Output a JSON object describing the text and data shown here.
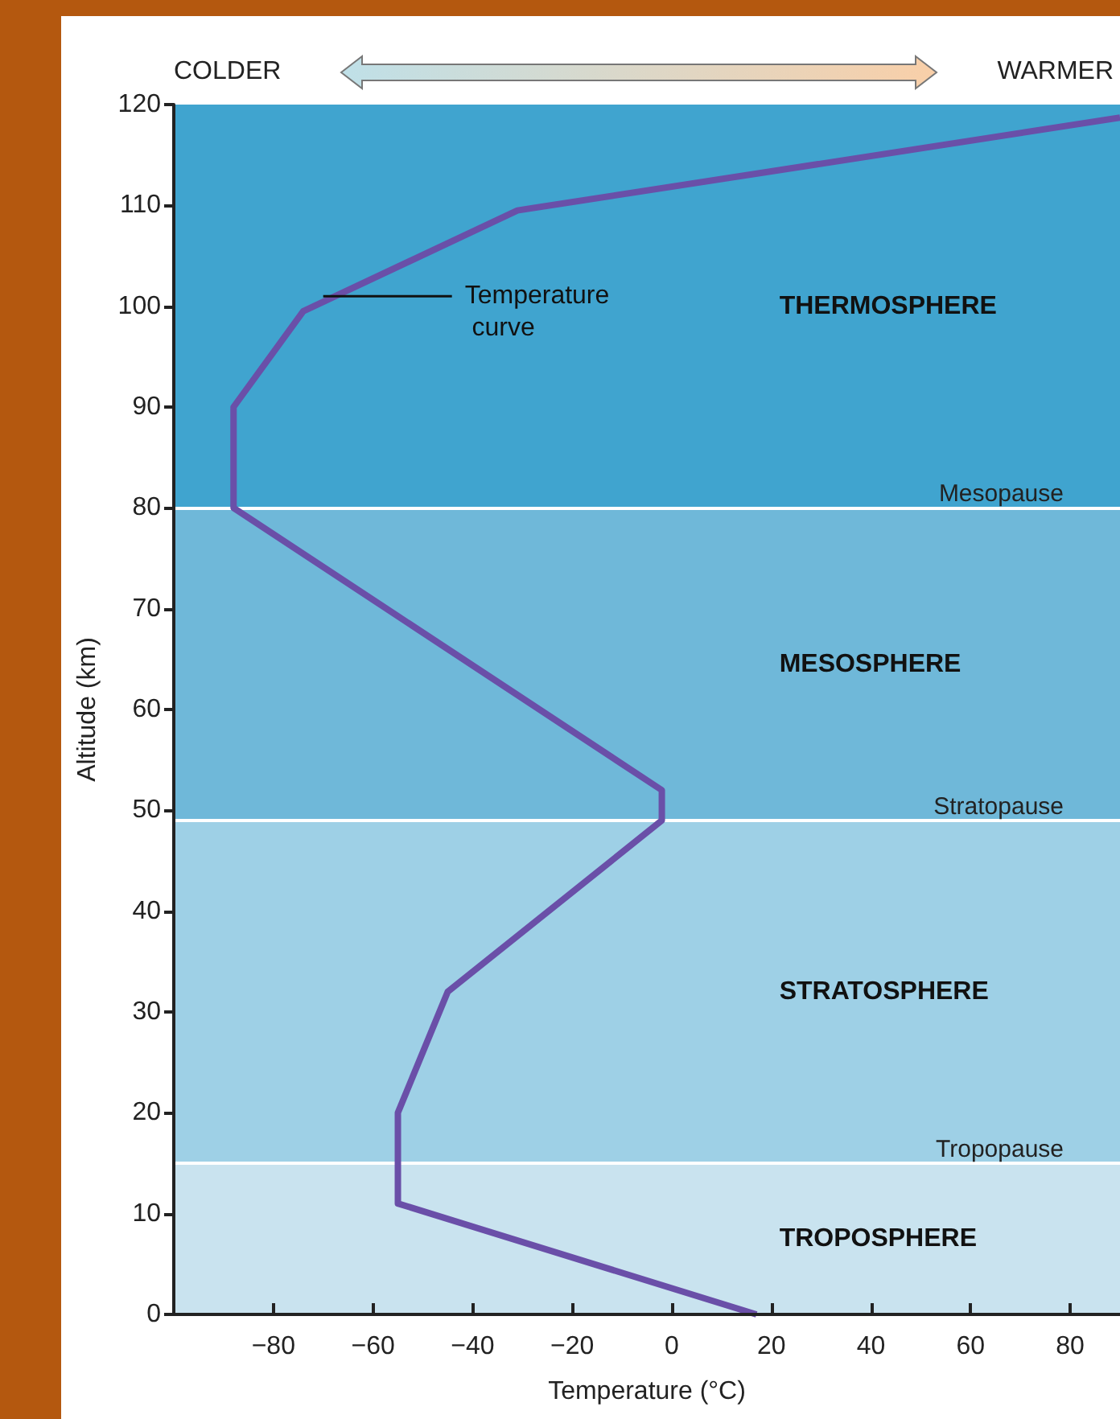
{
  "chart_data": {
    "type": "line",
    "xlabel": "Temperature (°C)",
    "ylabel": "Altitude (km)",
    "x": [
      17,
      -55,
      -55,
      -45,
      -2,
      -2,
      -88,
      -88,
      -74,
      -31,
      90
    ],
    "series": [
      {
        "color": "#6a4fa8",
        "values": [
          0,
          11,
          20,
          32,
          49,
          52,
          80,
          90,
          99.5,
          109.5,
          118.7
        ]
      }
    ],
    "xlim": [
      -100,
      90
    ],
    "xticks": [
      -80,
      -60,
      -40,
      -20,
      0,
      20,
      40,
      60,
      80
    ],
    "ylim": [
      0,
      120
    ],
    "yticks": [
      0,
      10,
      20,
      30,
      40,
      50,
      60,
      70,
      80,
      90,
      100,
      110,
      120
    ],
    "marker": "none",
    "line_style": "solid",
    "bands": [
      {
        "axis": "y",
        "from": 0,
        "to": 15,
        "label": "TROPOSPHERE",
        "color": "#c9e3ef"
      },
      {
        "axis": "y",
        "from": 15,
        "to": 49,
        "label": "STRATOSPHERE",
        "color": "#9ed0e6"
      },
      {
        "axis": "y",
        "from": 49,
        "to": 80,
        "label": "MESOSPHERE",
        "color": "#6fb8d9"
      },
      {
        "axis": "y",
        "from": 80,
        "to": 120,
        "label": "THERMOSPHERE",
        "color": "#40a4cf"
      }
    ],
    "ref_lines": [
      {
        "axis": "y",
        "value": 15,
        "label": "Tropopause",
        "color": "#ffffff"
      },
      {
        "axis": "y",
        "value": 49,
        "label": "Stratopause",
        "color": "#ffffff"
      },
      {
        "axis": "y",
        "value": 80,
        "label": "Mesopause",
        "color": "#ffffff"
      }
    ],
    "annotations": [
      {
        "text": "Temperature curve",
        "x": -70,
        "y": 101
      },
      "COLDER",
      "WARMER"
    ]
  }
}
